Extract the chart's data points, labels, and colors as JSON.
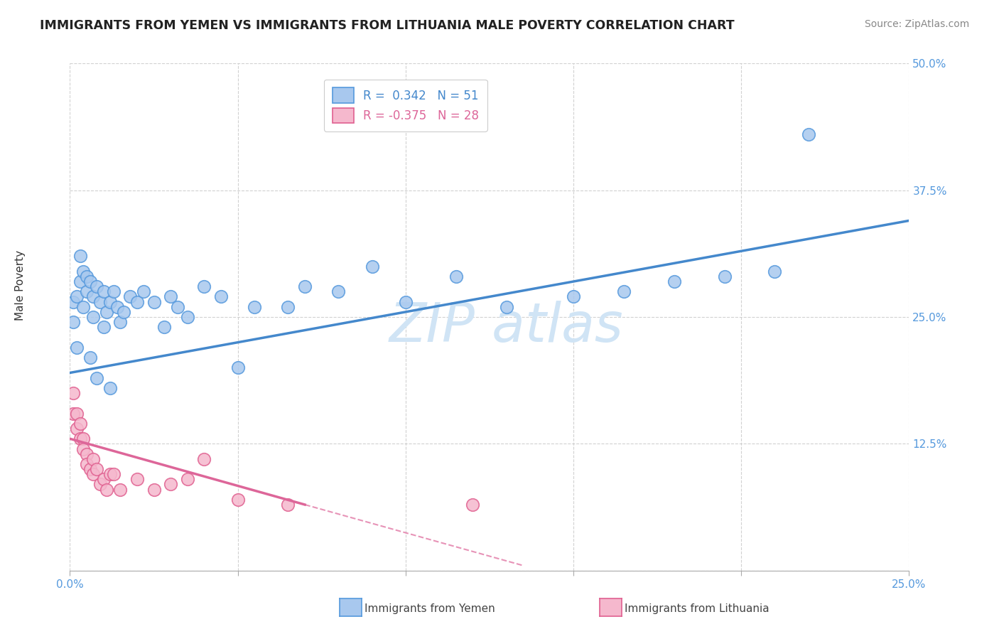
{
  "title": "IMMIGRANTS FROM YEMEN VS IMMIGRANTS FROM LITHUANIA MALE POVERTY CORRELATION CHART",
  "source": "Source: ZipAtlas.com",
  "ylabel": "Male Poverty",
  "xlim": [
    0,
    0.25
  ],
  "ylim": [
    0,
    0.5
  ],
  "xticks": [
    0.0,
    0.05,
    0.1,
    0.15,
    0.2,
    0.25
  ],
  "yticks": [
    0.0,
    0.125,
    0.25,
    0.375,
    0.5
  ],
  "color_yemen": "#a8c8ee",
  "color_yemen_edge": "#5599dd",
  "color_lithuania": "#f5b8cd",
  "color_lithuania_edge": "#e06090",
  "color_line_yemen": "#4488cc",
  "color_line_lithuania": "#dd6699",
  "watermark_color": "#d0e4f5",
  "yemen_x": [
    0.001,
    0.001,
    0.002,
    0.003,
    0.003,
    0.004,
    0.004,
    0.005,
    0.005,
    0.006,
    0.007,
    0.007,
    0.008,
    0.009,
    0.01,
    0.01,
    0.011,
    0.012,
    0.013,
    0.014,
    0.015,
    0.016,
    0.018,
    0.02,
    0.022,
    0.025,
    0.028,
    0.03,
    0.032,
    0.035,
    0.04,
    0.045,
    0.05,
    0.055,
    0.065,
    0.07,
    0.08,
    0.09,
    0.1,
    0.115,
    0.13,
    0.15,
    0.165,
    0.18,
    0.195,
    0.21,
    0.22,
    0.002,
    0.006,
    0.008,
    0.012
  ],
  "yemen_y": [
    0.265,
    0.245,
    0.27,
    0.31,
    0.285,
    0.295,
    0.26,
    0.29,
    0.275,
    0.285,
    0.27,
    0.25,
    0.28,
    0.265,
    0.24,
    0.275,
    0.255,
    0.265,
    0.275,
    0.26,
    0.245,
    0.255,
    0.27,
    0.265,
    0.275,
    0.265,
    0.24,
    0.27,
    0.26,
    0.25,
    0.28,
    0.27,
    0.2,
    0.26,
    0.26,
    0.28,
    0.275,
    0.3,
    0.265,
    0.29,
    0.26,
    0.27,
    0.275,
    0.285,
    0.29,
    0.295,
    0.43,
    0.22,
    0.21,
    0.19,
    0.18
  ],
  "lithuania_x": [
    0.001,
    0.001,
    0.002,
    0.002,
    0.003,
    0.003,
    0.004,
    0.004,
    0.005,
    0.005,
    0.006,
    0.007,
    0.007,
    0.008,
    0.009,
    0.01,
    0.011,
    0.012,
    0.013,
    0.015,
    0.02,
    0.025,
    0.03,
    0.035,
    0.04,
    0.05,
    0.065,
    0.12
  ],
  "lithuania_y": [
    0.175,
    0.155,
    0.155,
    0.14,
    0.13,
    0.145,
    0.13,
    0.12,
    0.115,
    0.105,
    0.1,
    0.11,
    0.095,
    0.1,
    0.085,
    0.09,
    0.08,
    0.095,
    0.095,
    0.08,
    0.09,
    0.08,
    0.085,
    0.09,
    0.11,
    0.07,
    0.065,
    0.065
  ],
  "trend_yemen_x0": 0.0,
  "trend_yemen_y0": 0.195,
  "trend_yemen_x1": 0.25,
  "trend_yemen_y1": 0.345,
  "trend_lith_solid_x0": 0.0,
  "trend_lith_solid_y0": 0.13,
  "trend_lith_solid_x1": 0.07,
  "trend_lith_solid_y1": 0.065,
  "trend_lith_dash_x0": 0.07,
  "trend_lith_dash_y0": 0.065,
  "trend_lith_dash_x1": 0.135,
  "trend_lith_dash_y1": 0.005
}
